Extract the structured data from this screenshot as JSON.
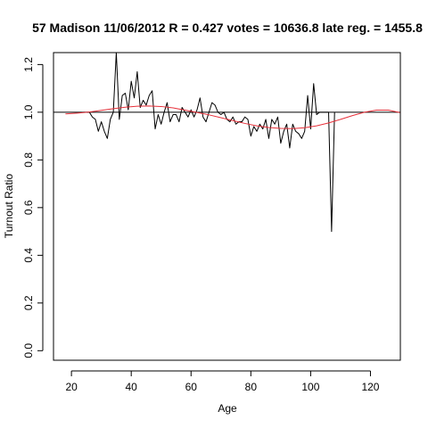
{
  "chart_data": {
    "type": "line",
    "title": "57 Madison 11/06/2012 R = 0.427 votes = 10636.8 late reg. = 1455.8",
    "xlabel": "Age",
    "ylabel": "Turnout Ratio",
    "xlim": [
      14,
      130
    ],
    "ylim": [
      -0.04,
      1.25
    ],
    "xticks": [
      20,
      40,
      60,
      80,
      100,
      120
    ],
    "yticks": [
      0.0,
      0.2,
      0.4,
      0.6,
      0.8,
      1.0,
      1.2
    ],
    "ytick_labels": [
      "0.0",
      "0.2",
      "0.4",
      "0.6",
      "0.8",
      "1.0",
      "1.2"
    ],
    "reference_line": {
      "y": 1.0,
      "color": "#000000"
    },
    "series": [
      {
        "color": "#000000",
        "x": [
          24,
          25,
          26,
          27,
          28,
          29,
          30,
          31,
          32,
          33,
          34,
          35,
          36,
          37,
          38,
          39,
          40,
          41,
          42,
          43,
          44,
          45,
          46,
          47,
          48,
          49,
          50,
          51,
          52,
          53,
          54,
          55,
          56,
          57,
          58,
          59,
          60,
          61,
          62,
          63,
          64,
          65,
          66,
          67,
          68,
          69,
          70,
          71,
          72,
          73,
          74,
          75,
          76,
          77,
          78,
          79,
          80,
          81,
          82,
          83,
          84,
          85,
          86,
          87,
          88,
          89,
          90,
          91,
          92,
          93,
          94,
          95,
          96,
          97,
          98,
          99,
          100,
          101,
          102,
          103,
          104,
          105,
          106,
          107,
          108
        ],
        "values": [
          1.0,
          1.0,
          1.0,
          0.98,
          0.97,
          0.92,
          0.96,
          0.92,
          0.89,
          0.97,
          1.0,
          1.25,
          0.97,
          1.07,
          1.08,
          1.01,
          1.13,
          1.06,
          1.17,
          1.02,
          1.05,
          1.03,
          1.07,
          1.09,
          0.93,
          0.99,
          0.95,
          1.0,
          1.04,
          0.96,
          0.99,
          0.99,
          0.96,
          1.02,
          1.0,
          0.98,
          1.01,
          0.98,
          1.01,
          1.06,
          0.98,
          0.96,
          1.0,
          1.04,
          1.03,
          1.0,
          0.99,
          1.0,
          0.97,
          0.96,
          0.98,
          0.95,
          0.96,
          0.96,
          0.98,
          0.97,
          0.9,
          0.94,
          0.92,
          0.95,
          0.93,
          0.97,
          0.89,
          0.97,
          0.95,
          0.98,
          0.87,
          0.92,
          0.95,
          0.85,
          0.95,
          0.92,
          0.91,
          0.89,
          0.92,
          1.07,
          0.93,
          1.12,
          0.99,
          1.0,
          1.0,
          1.0,
          1.0,
          0.5,
          1.0
        ]
      },
      {
        "color": "#e8303a",
        "x": [
          18,
          22,
          26,
          30,
          34,
          38,
          42,
          46,
          50,
          54,
          58,
          62,
          66,
          70,
          74,
          78,
          82,
          86,
          90,
          94,
          98,
          102,
          106,
          110,
          114,
          118,
          122,
          126,
          130
        ],
        "values": [
          0.993,
          0.996,
          1.001,
          1.008,
          1.015,
          1.021,
          1.025,
          1.026,
          1.024,
          1.018,
          1.009,
          0.999,
          0.989,
          0.977,
          0.965,
          0.953,
          0.943,
          0.936,
          0.932,
          0.931,
          0.935,
          0.943,
          0.955,
          0.97,
          0.986,
          1.0,
          1.009,
          1.009,
          0.998
        ]
      }
    ]
  }
}
